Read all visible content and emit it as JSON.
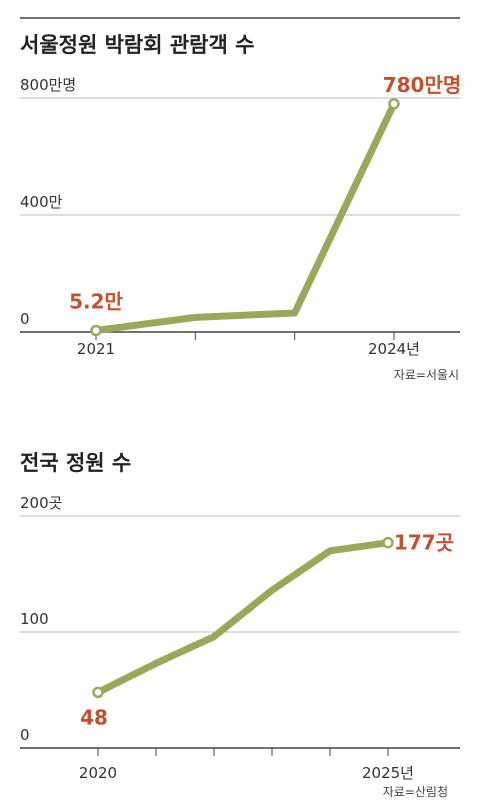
{
  "colors": {
    "line": "#9aa85a",
    "accent": "#c0522d",
    "grid": "#bdbdbd",
    "axis": "#444444"
  },
  "chart_data": [
    {
      "type": "line",
      "title": "서울정원 박람회 관람객 수",
      "y_tick_labels": [
        "0",
        "400만",
        "800만명"
      ],
      "y_ticks": [
        0,
        400,
        800
      ],
      "ylim": [
        0,
        800
      ],
      "x": [
        2021,
        2022,
        2023,
        2024
      ],
      "x_tick_labels": [
        "2021",
        "",
        "",
        "2024년"
      ],
      "values": [
        5.2,
        50,
        65,
        780
      ],
      "data_labels": [
        {
          "index": 0,
          "text": "5.2만"
        },
        {
          "index": 3,
          "text": "780만명"
        }
      ],
      "source": "자료=서울시",
      "grid": true
    },
    {
      "type": "line",
      "title": "전국 정원 수",
      "y_tick_labels": [
        "0",
        "100",
        "200곳"
      ],
      "y_ticks": [
        0,
        100,
        200
      ],
      "ylim": [
        0,
        200
      ],
      "x": [
        2020,
        2021,
        2022,
        2023,
        2024,
        2025
      ],
      "x_tick_labels": [
        "2020",
        "",
        "",
        "",
        "",
        "2025년"
      ],
      "values": [
        48,
        73,
        96,
        136,
        170,
        177
      ],
      "data_labels": [
        {
          "index": 0,
          "text": "48"
        },
        {
          "index": 5,
          "text": "177곳"
        }
      ],
      "source": "자료=산림청",
      "grid": true
    }
  ]
}
